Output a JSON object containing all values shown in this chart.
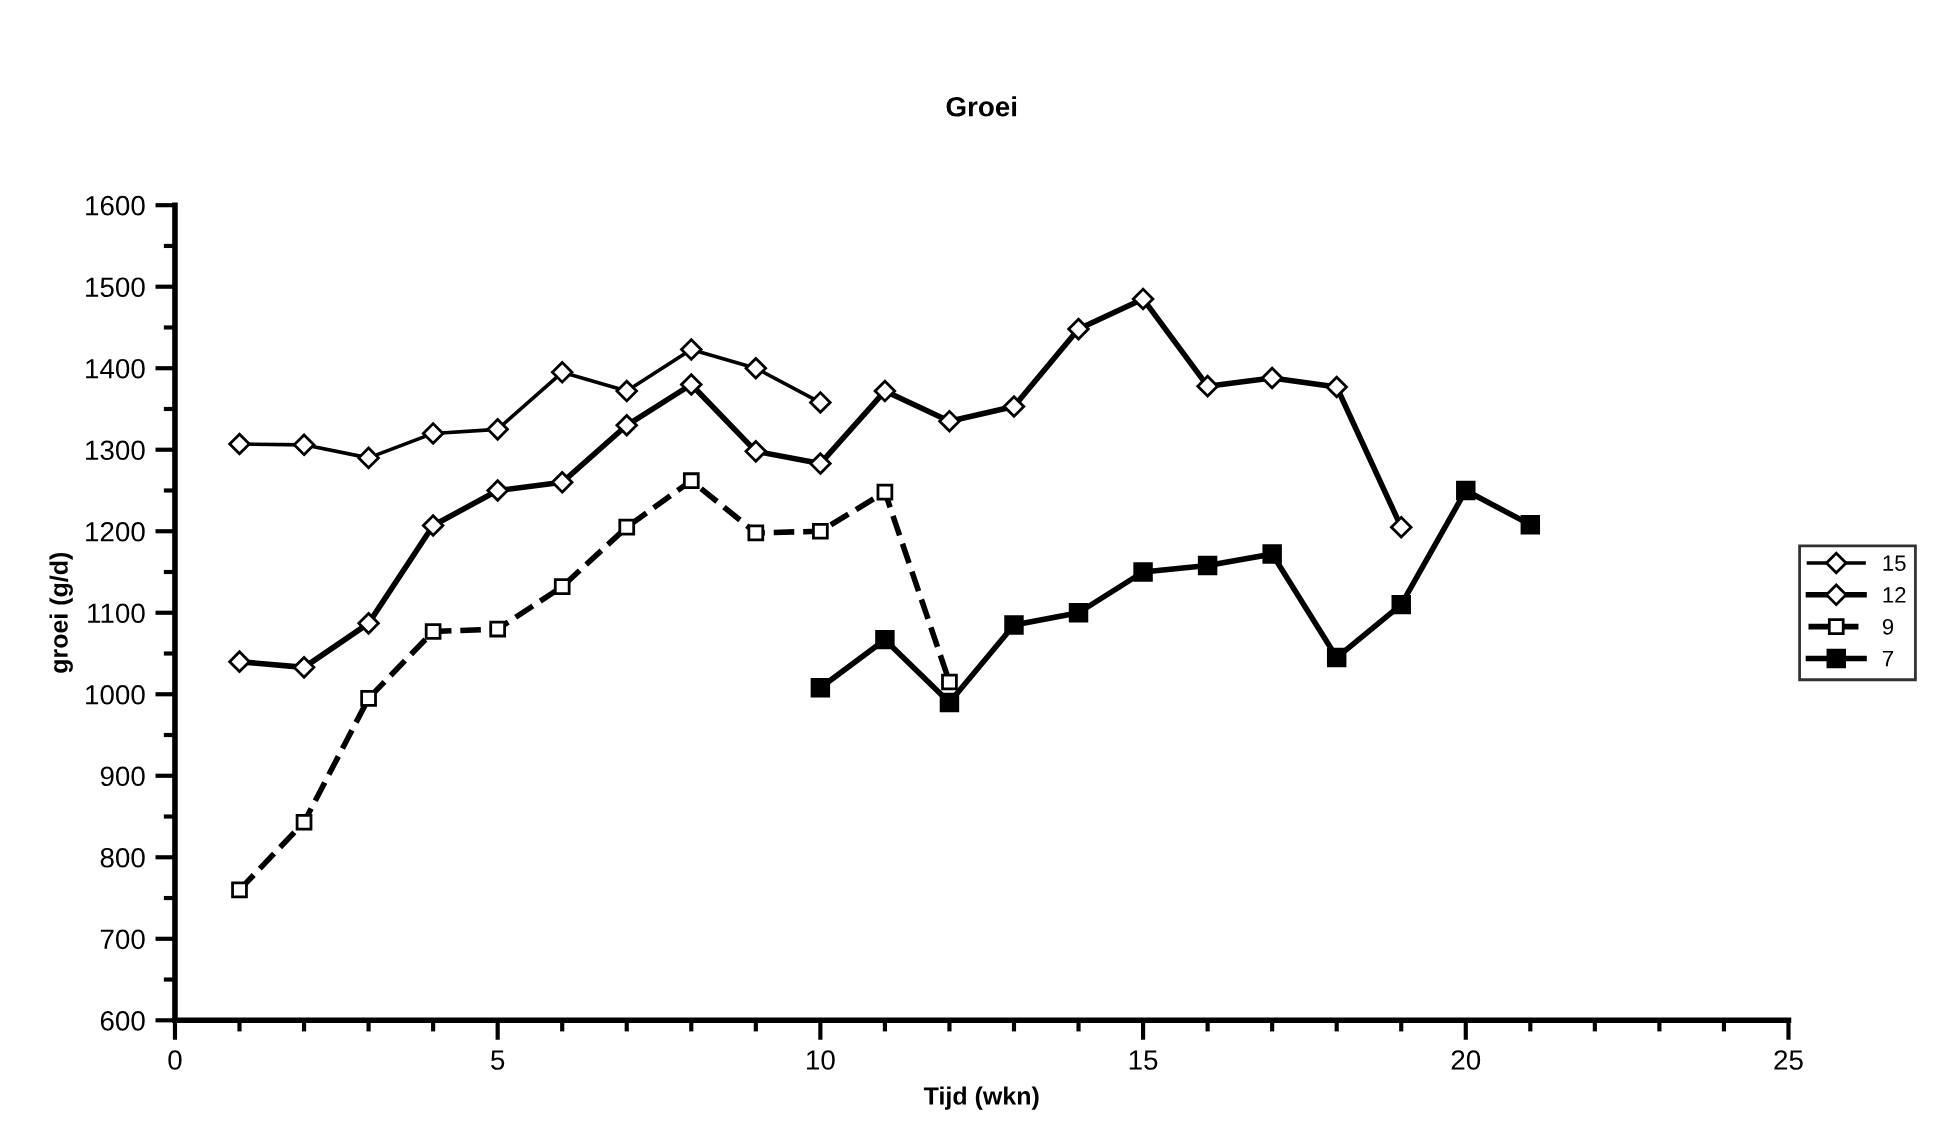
{
  "chart_data": {
    "type": "line",
    "title": "Groei",
    "xlabel": "Tijd (wkn)",
    "ylabel": "groei (g/d)",
    "xlim": [
      0,
      25
    ],
    "xticks": [
      0,
      5,
      10,
      15,
      20,
      25
    ],
    "ylim": [
      600,
      1600
    ],
    "yticks": [
      600,
      700,
      800,
      900,
      1000,
      1100,
      1200,
      1300,
      1400,
      1500,
      1600
    ],
    "grid": false,
    "legend": "right",
    "series": [
      {
        "name": "15",
        "color": "#000000",
        "marker": "diamond",
        "line_style": "solid",
        "x": [
          1,
          2,
          3,
          4,
          5,
          6,
          7,
          8,
          9,
          10
        ],
        "values": [
          1307,
          1306,
          1290,
          1320,
          1325,
          1395,
          1372,
          1423,
          1400,
          1358
        ]
      },
      {
        "name": "12",
        "color": "#000000",
        "marker": "diamond",
        "line_style": "solid",
        "x": [
          1,
          2,
          3,
          4,
          5,
          6,
          7,
          8,
          9,
          10,
          11,
          12,
          13,
          14,
          15,
          16,
          17,
          18,
          19
        ],
        "values": [
          1040,
          1033,
          1087,
          1207,
          1250,
          1260,
          1330,
          1380,
          1298,
          1283,
          1372,
          1335,
          1353,
          1448,
          1485,
          1378,
          1388,
          1377,
          1205
        ]
      },
      {
        "name": "9",
        "color": "#000000",
        "marker": "square",
        "line_style": "dashed",
        "x": [
          1,
          2,
          3,
          4,
          5,
          6,
          7,
          8,
          9,
          10,
          11,
          12
        ],
        "values": [
          760,
          843,
          995,
          1077,
          1080,
          1132,
          1205,
          1262,
          1198,
          1200,
          1248,
          1015
        ]
      },
      {
        "name": "7",
        "color": "#000000",
        "marker": "square",
        "line_style": "solid",
        "x": [
          10,
          11,
          12,
          13,
          14,
          15,
          16,
          17,
          18,
          19,
          20,
          21
        ],
        "values": [
          1008,
          1067,
          990,
          1085,
          1100,
          1150,
          1158,
          1172,
          1045,
          1110,
          1250,
          1208
        ]
      }
    ]
  }
}
